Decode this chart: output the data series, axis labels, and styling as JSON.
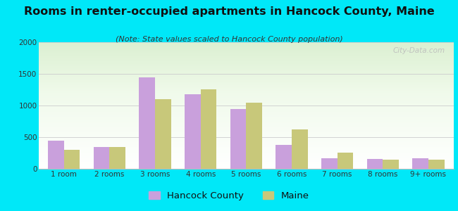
{
  "title": "Rooms in renter-occupied apartments in Hancock County, Maine",
  "subtitle": "(Note: State values scaled to Hancock County population)",
  "categories": [
    "1 room",
    "2 rooms",
    "3 rooms",
    "4 rooms",
    "5 rooms",
    "6 rooms",
    "7 rooms",
    "8 rooms",
    "9+ rooms"
  ],
  "hancock_values": [
    450,
    340,
    1450,
    1175,
    940,
    380,
    165,
    160,
    165
  ],
  "maine_values": [
    305,
    345,
    1100,
    1260,
    1045,
    620,
    255,
    145,
    140
  ],
  "hancock_color": "#c9a0dc",
  "maine_color": "#c8c87a",
  "background_outer": "#00e8f8",
  "ylim": [
    0,
    2000
  ],
  "yticks": [
    0,
    500,
    1000,
    1500,
    2000
  ],
  "title_fontsize": 11.5,
  "subtitle_fontsize": 8,
  "tick_fontsize": 7.5,
  "legend_fontsize": 9.5
}
